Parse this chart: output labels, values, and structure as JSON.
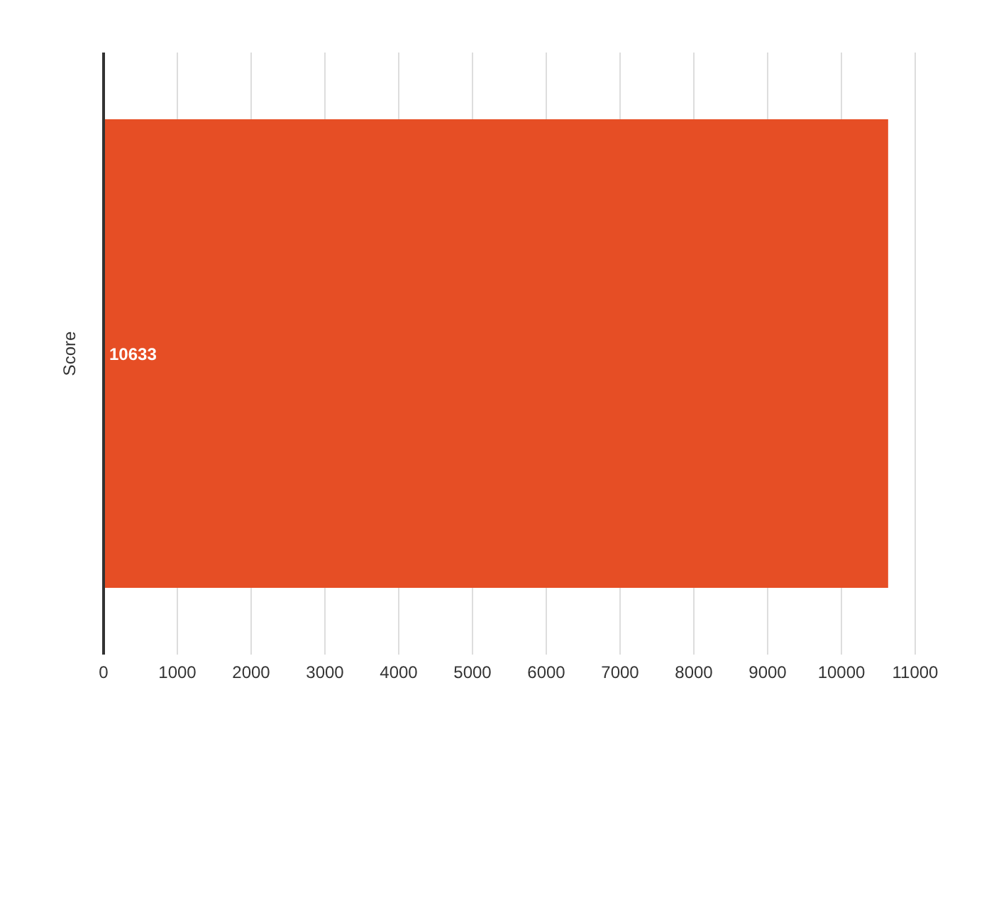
{
  "chart_data": {
    "type": "bar",
    "orientation": "horizontal",
    "categories": [
      "Score"
    ],
    "values": [
      10633
    ],
    "color": "#e64e25",
    "xlim": [
      0,
      11000
    ],
    "xticks": [
      0,
      1000,
      2000,
      3000,
      4000,
      5000,
      6000,
      7000,
      8000,
      9000,
      10000,
      11000
    ],
    "grid": "x",
    "data_labels": true
  }
}
